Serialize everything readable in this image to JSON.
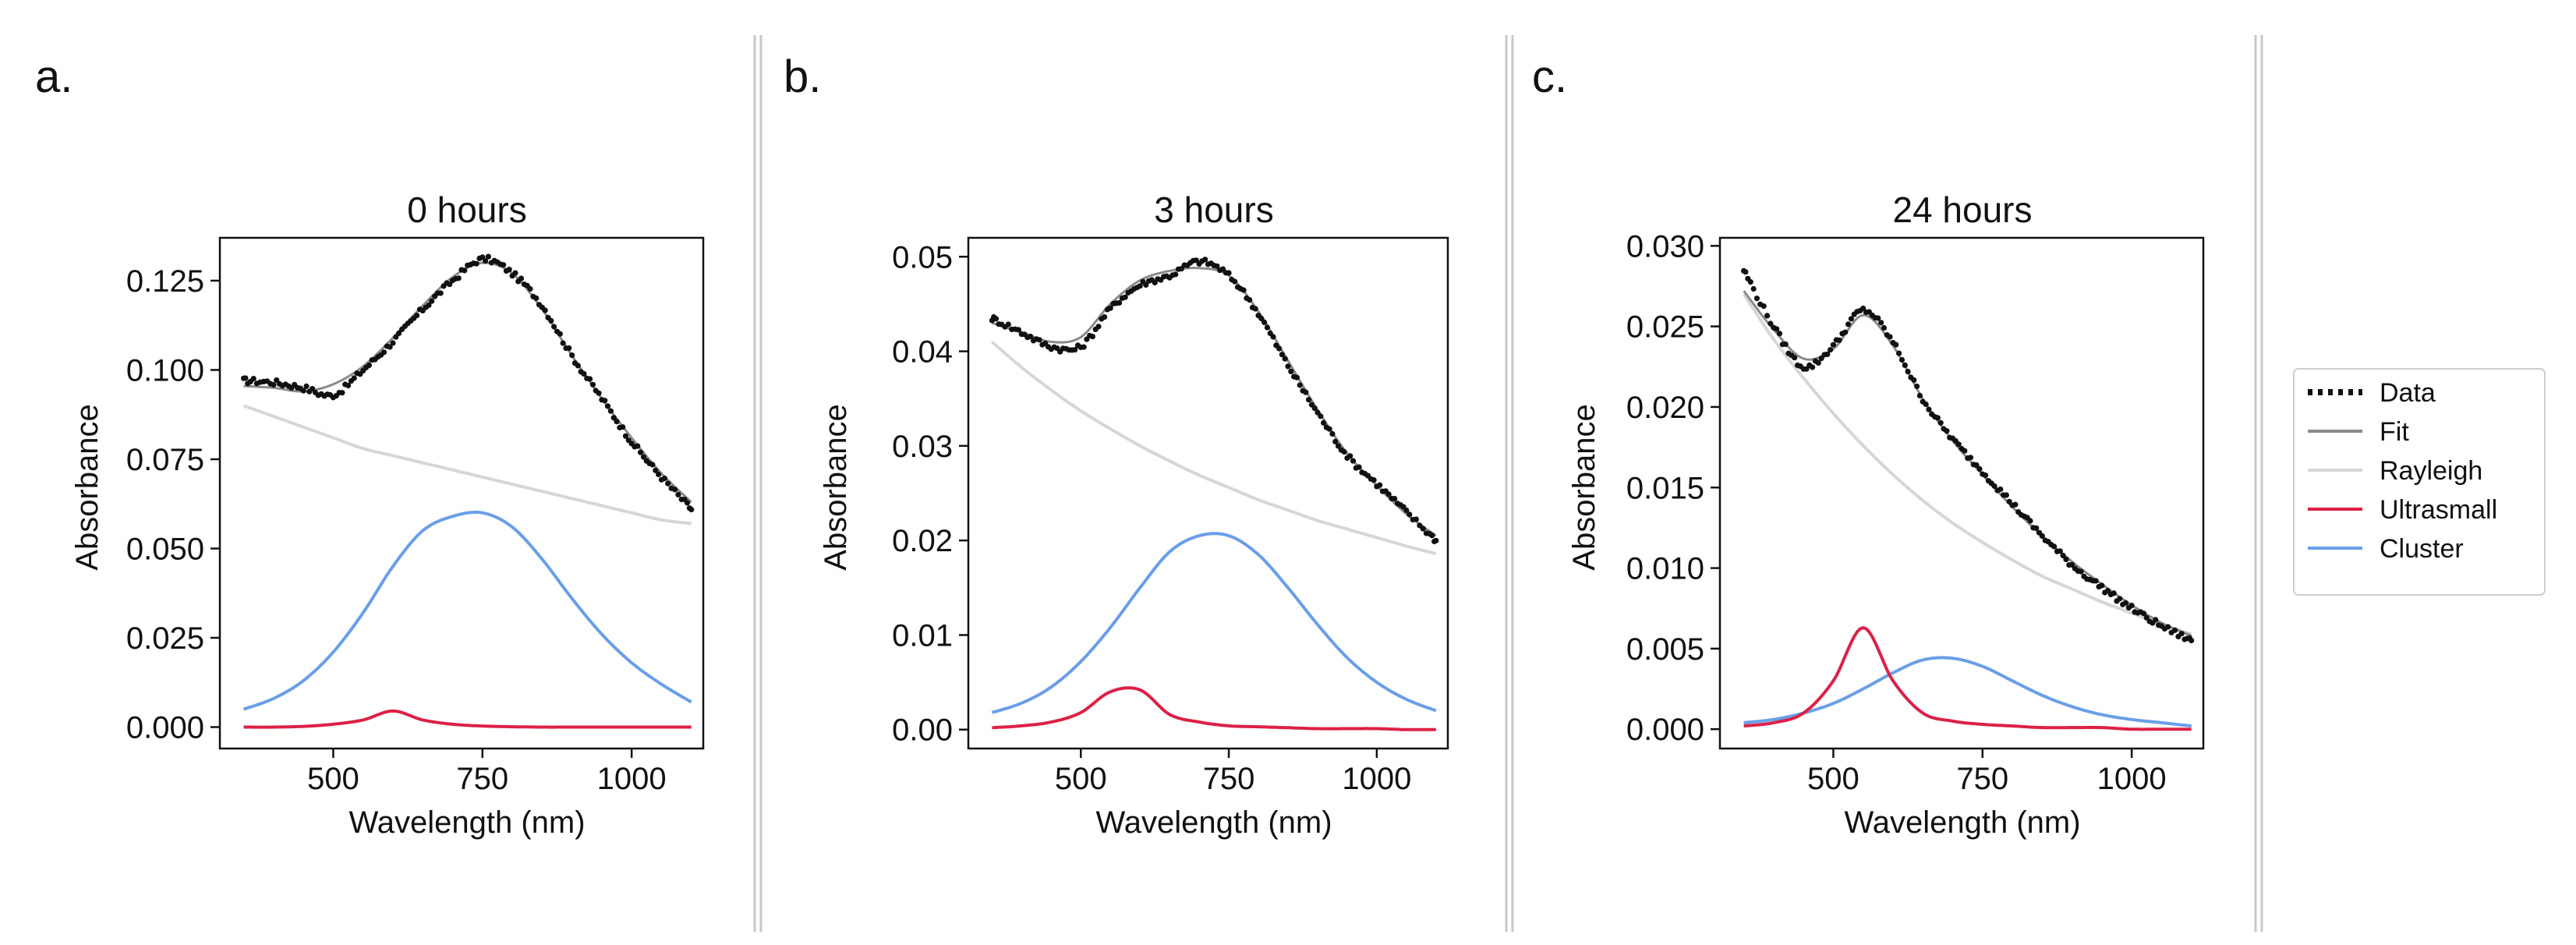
{
  "figure": {
    "panel_letters": [
      "a.",
      "b.",
      "c."
    ]
  },
  "colors": {
    "data": "#111111",
    "fit": "#8a8a8a",
    "rayleigh": "#d6d6d6",
    "ultrasmall": "#dc2146",
    "cluster": "#6a9ee8",
    "divider": "#c8c8c8"
  },
  "legend": {
    "entries": [
      {
        "name": "Data",
        "style": "dotted",
        "color": "#111111"
      },
      {
        "name": "Fit",
        "style": "solid",
        "color": "#8a8a8a"
      },
      {
        "name": "Rayleigh",
        "style": "solid",
        "color": "#d6d6d6"
      },
      {
        "name": "Ultrasmall",
        "style": "solid",
        "color": "#dc2146"
      },
      {
        "name": "Cluster",
        "style": "solid",
        "color": "#6a9ee8"
      }
    ]
  },
  "chart_data": [
    {
      "type": "line",
      "panel": "a.",
      "title": "0 hours",
      "xlabel": "Wavelength (nm)",
      "ylabel": "Absorbance",
      "xlim": [
        310,
        1120
      ],
      "ylim": [
        -0.006,
        0.137
      ],
      "xticks": [
        500,
        750,
        1000
      ],
      "xtick_labels": [
        "500",
        "750",
        "1000"
      ],
      "yticks": [
        0,
        0.025,
        0.05,
        0.075,
        0.1,
        0.125
      ],
      "ytick_labels": [
        "0.000",
        "0.025",
        "0.050",
        "0.075",
        "0.100",
        "0.125"
      ],
      "x": [
        350,
        400,
        450,
        500,
        550,
        600,
        650,
        700,
        750,
        800,
        850,
        900,
        950,
        1000,
        1050,
        1100
      ],
      "series": [
        {
          "name": "Data",
          "values": [
            0.097,
            0.0965,
            0.095,
            0.093,
            0.1,
            0.108,
            0.117,
            0.125,
            0.131,
            0.127,
            0.118,
            0.104,
            0.092,
            0.08,
            0.07,
            0.061
          ]
        },
        {
          "name": "Fit",
          "values": [
            0.0955,
            0.095,
            0.094,
            0.096,
            0.101,
            0.109,
            0.118,
            0.126,
            0.13,
            0.127,
            0.117,
            0.104,
            0.092,
            0.081,
            0.071,
            0.063
          ]
        },
        {
          "name": "Rayleigh",
          "values": [
            0.09,
            0.087,
            0.084,
            0.081,
            0.078,
            0.076,
            0.074,
            0.072,
            0.07,
            0.068,
            0.066,
            0.064,
            0.062,
            0.06,
            0.058,
            0.057
          ]
        },
        {
          "name": "Ultrasmall",
          "values": [
            0.0,
            0.0,
            0.0002,
            0.0008,
            0.002,
            0.0045,
            0.002,
            0.0008,
            0.0003,
            0.0001,
            0.0,
            0.0,
            0.0,
            0.0,
            0.0,
            0.0
          ]
        },
        {
          "name": "Cluster",
          "values": [
            0.005,
            0.008,
            0.013,
            0.021,
            0.032,
            0.045,
            0.055,
            0.059,
            0.06,
            0.056,
            0.047,
            0.036,
            0.026,
            0.018,
            0.012,
            0.007
          ]
        }
      ]
    },
    {
      "type": "line",
      "panel": "b.",
      "title": "3 hours",
      "xlabel": "Wavelength (nm)",
      "ylabel": "Absorbance",
      "xlim": [
        310,
        1120
      ],
      "ylim": [
        -0.002,
        0.052
      ],
      "xticks": [
        500,
        750,
        1000
      ],
      "xtick_labels": [
        "500",
        "750",
        "1000"
      ],
      "yticks": [
        0,
        0.01,
        0.02,
        0.03,
        0.04,
        0.05
      ],
      "ytick_labels": [
        "0.00",
        "0.01",
        "0.02",
        "0.03",
        "0.04",
        "0.05"
      ],
      "x": [
        350,
        400,
        450,
        500,
        550,
        600,
        650,
        700,
        750,
        800,
        850,
        900,
        950,
        1000,
        1050,
        1100
      ],
      "series": [
        {
          "name": "Data",
          "values": [
            0.0435,
            0.042,
            0.0405,
            0.0405,
            0.0445,
            0.047,
            0.048,
            0.0495,
            0.048,
            0.044,
            0.0385,
            0.0335,
            0.029,
            0.026,
            0.023,
            0.02
          ]
        },
        {
          "name": "Fit",
          "values": [
            0.043,
            0.042,
            0.041,
            0.0415,
            0.045,
            0.0475,
            0.0485,
            0.0488,
            0.048,
            0.0442,
            0.039,
            0.0338,
            0.0292,
            0.0258,
            0.0228,
            0.0205
          ]
        },
        {
          "name": "Rayleigh",
          "values": [
            0.041,
            0.0383,
            0.0359,
            0.0337,
            0.0318,
            0.03,
            0.0284,
            0.0269,
            0.0256,
            0.0243,
            0.0232,
            0.0221,
            0.0212,
            0.0203,
            0.0194,
            0.0186
          ]
        },
        {
          "name": "Ultrasmall",
          "values": [
            0.0002,
            0.0004,
            0.0008,
            0.0018,
            0.004,
            0.0042,
            0.0016,
            0.0008,
            0.0004,
            0.0003,
            0.0002,
            0.0001,
            0.0001,
            0.0001,
            0.0,
            0.0
          ]
        },
        {
          "name": "Cluster",
          "values": [
            0.0018,
            0.0028,
            0.0045,
            0.0072,
            0.0108,
            0.015,
            0.0188,
            0.0205,
            0.0205,
            0.0185,
            0.015,
            0.0111,
            0.0076,
            0.005,
            0.0032,
            0.002
          ]
        }
      ]
    },
    {
      "type": "line",
      "panel": "c.",
      "title": "24 hours",
      "xlabel": "Wavelength (nm)",
      "ylabel": "Absorbance",
      "xlim": [
        310,
        1120
      ],
      "ylim": [
        -0.0012,
        0.0305
      ],
      "xticks": [
        500,
        750,
        1000
      ],
      "xtick_labels": [
        "500",
        "750",
        "1000"
      ],
      "yticks": [
        0,
        0.005,
        0.01,
        0.015,
        0.02,
        0.025,
        0.03
      ],
      "ytick_labels": [
        "0.000",
        "0.005",
        "0.010",
        "0.015",
        "0.020",
        "0.025",
        "0.030"
      ],
      "x": [
        350,
        400,
        450,
        500,
        550,
        600,
        650,
        700,
        750,
        800,
        850,
        900,
        950,
        1000,
        1050,
        1100
      ],
      "series": [
        {
          "name": "Data",
          "values": [
            0.0285,
            0.025,
            0.0225,
            0.0238,
            0.026,
            0.024,
            0.0205,
            0.018,
            0.016,
            0.014,
            0.012,
            0.0102,
            0.0088,
            0.0075,
            0.0064,
            0.0055
          ]
        },
        {
          "name": "Fit",
          "values": [
            0.0272,
            0.0248,
            0.023,
            0.0236,
            0.0257,
            0.0238,
            0.0205,
            0.0179,
            0.0158,
            0.0138,
            0.012,
            0.0104,
            0.009,
            0.0077,
            0.0066,
            0.0058
          ]
        },
        {
          "name": "Rayleigh",
          "values": [
            0.027,
            0.0242,
            0.0218,
            0.0196,
            0.0176,
            0.0158,
            0.0142,
            0.0128,
            0.0116,
            0.0105,
            0.0095,
            0.0087,
            0.0079,
            0.0072,
            0.0065,
            0.0059
          ]
        },
        {
          "name": "Ultrasmall",
          "values": [
            0.0002,
            0.0004,
            0.001,
            0.003,
            0.0063,
            0.003,
            0.001,
            0.0005,
            0.0003,
            0.0002,
            0.0001,
            0.0001,
            0.0001,
            0.0,
            0.0,
            0.0
          ]
        },
        {
          "name": "Cluster",
          "values": [
            0.0004,
            0.0006,
            0.001,
            0.0016,
            0.0025,
            0.0035,
            0.0043,
            0.0044,
            0.0039,
            0.003,
            0.0021,
            0.0014,
            0.0009,
            0.0006,
            0.0004,
            0.0002
          ]
        }
      ]
    }
  ]
}
